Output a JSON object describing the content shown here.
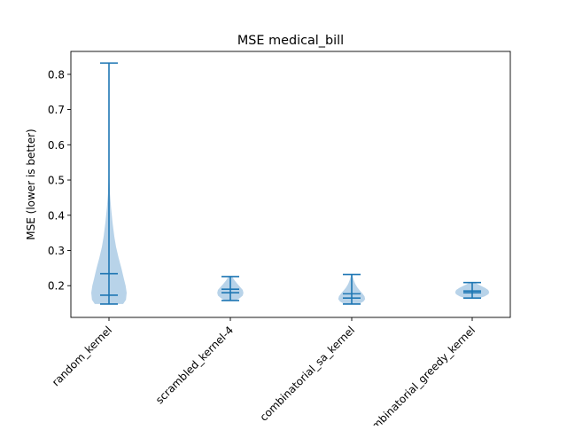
{
  "chart_data": {
    "type": "violin",
    "title": "MSE medical_bill",
    "xlabel": "",
    "ylabel": "MSE (lower is better)",
    "ylim": [
      0.11,
      0.865
    ],
    "yticks": [
      0.2,
      0.3,
      0.4,
      0.5,
      0.6,
      0.7,
      0.8
    ],
    "ytick_labels": [
      "0.2",
      "0.3",
      "0.4",
      "0.5",
      "0.6",
      "0.7",
      "0.8"
    ],
    "categories": [
      "random_kernel",
      "scrambled_kernel-4",
      "combinatorial_sa_kernel",
      "combinatorial_greedy_kernel"
    ],
    "violins": [
      {
        "category": "random_kernel",
        "min": 0.148,
        "max": 0.832,
        "mean": 0.234,
        "median": 0.173,
        "density": [
          [
            0.148,
            0.4
          ],
          [
            0.16,
            0.48
          ],
          [
            0.18,
            0.5
          ],
          [
            0.2,
            0.47
          ],
          [
            0.22,
            0.42
          ],
          [
            0.25,
            0.35
          ],
          [
            0.28,
            0.27
          ],
          [
            0.31,
            0.2
          ],
          [
            0.34,
            0.15
          ],
          [
            0.38,
            0.1
          ],
          [
            0.42,
            0.06
          ],
          [
            0.46,
            0.03
          ],
          [
            0.5,
            0.015
          ],
          [
            0.55,
            0.008
          ],
          [
            0.6,
            0.005
          ],
          [
            0.7,
            0.003
          ],
          [
            0.832,
            0.002
          ]
        ]
      },
      {
        "category": "scrambled_kernel-4",
        "min": 0.158,
        "max": 0.226,
        "mean": 0.19,
        "median": 0.18,
        "density": [
          [
            0.158,
            0.16
          ],
          [
            0.165,
            0.27
          ],
          [
            0.172,
            0.35
          ],
          [
            0.18,
            0.37
          ],
          [
            0.188,
            0.35
          ],
          [
            0.196,
            0.28
          ],
          [
            0.205,
            0.2
          ],
          [
            0.215,
            0.12
          ],
          [
            0.226,
            0.05
          ]
        ]
      },
      {
        "category": "combinatorial_sa_kernel",
        "min": 0.148,
        "max": 0.232,
        "mean": 0.177,
        "median": 0.165,
        "density": [
          [
            0.148,
            0.2
          ],
          [
            0.155,
            0.33
          ],
          [
            0.162,
            0.38
          ],
          [
            0.17,
            0.36
          ],
          [
            0.178,
            0.3
          ],
          [
            0.186,
            0.23
          ],
          [
            0.195,
            0.16
          ],
          [
            0.205,
            0.1
          ],
          [
            0.215,
            0.06
          ],
          [
            0.225,
            0.03
          ],
          [
            0.232,
            0.01
          ]
        ]
      },
      {
        "category": "combinatorial_greedy_kernel",
        "min": 0.165,
        "max": 0.209,
        "mean": 0.185,
        "median": 0.18,
        "density": [
          [
            0.165,
            0.22
          ],
          [
            0.17,
            0.36
          ],
          [
            0.176,
            0.46
          ],
          [
            0.182,
            0.48
          ],
          [
            0.188,
            0.45
          ],
          [
            0.194,
            0.36
          ],
          [
            0.2,
            0.24
          ],
          [
            0.205,
            0.14
          ],
          [
            0.209,
            0.06
          ]
        ]
      }
    ],
    "colors": {
      "body": "#a6c8e3",
      "body_opacity": 0.8,
      "lines": "#1f77b4"
    }
  }
}
